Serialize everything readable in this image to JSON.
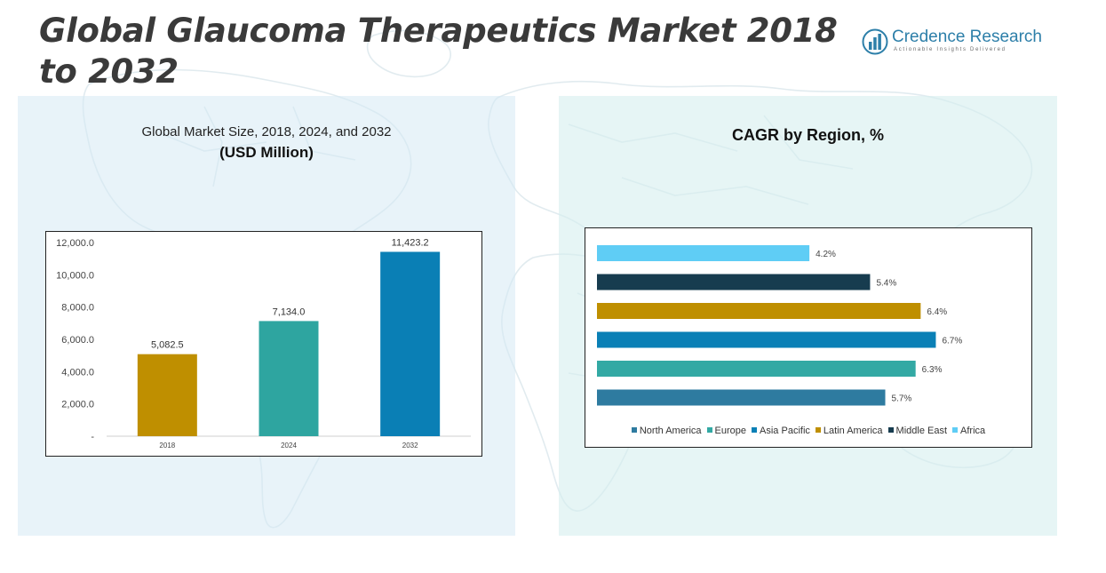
{
  "page": {
    "title": "Global Glaucoma Therapeutics Market 2018 to 2032",
    "logo": {
      "name": "Credence Research",
      "tagline": "Actionable Insights Delivered",
      "icon": "bar-chart-logo-icon"
    }
  },
  "colors": {
    "title_text": "#3a3a3a",
    "logo_blue": "#2d7fa9",
    "bar_2018": "#bf8f00",
    "bar_2024": "#2ea5a0",
    "bar_2032": "#0a7fb5",
    "north_america": "#2e7ba0",
    "europe": "#33a9a4",
    "asia_pacific": "#0a80b6",
    "latin_america": "#bf8f00",
    "middle_east": "#173c4f",
    "africa": "#5fcdf5"
  },
  "chart_data": [
    {
      "type": "bar",
      "title": "Global Market Size, 2018, 2024, and 2032",
      "subtitle": "(USD Million)",
      "categories": [
        "2018",
        "2024",
        "2032"
      ],
      "values": [
        5082.5,
        7134.0,
        11423.2
      ],
      "value_labels": [
        "5,082.5",
        "7,134.0",
        "11,423.2"
      ],
      "ylim": [
        0,
        12000
      ],
      "yticks": [
        0,
        2000,
        4000,
        6000,
        8000,
        10000,
        12000
      ],
      "ytick_labels": [
        "-",
        "2,000.0",
        "4,000.0",
        "6,000.0",
        "8,000.0",
        "10,000.0",
        "12,000.0"
      ],
      "bar_colors": [
        "#bf8f00",
        "#2ea5a0",
        "#0a7fb5"
      ],
      "grid": false
    },
    {
      "type": "bar",
      "orientation": "horizontal",
      "title": "CAGR by Region, %",
      "categories": [
        "North America",
        "Europe",
        "Asia Pacific",
        "Latin America",
        "Middle East",
        "Africa"
      ],
      "values": [
        5.7,
        6.3,
        6.7,
        6.4,
        5.4,
        4.2
      ],
      "value_labels": [
        "5.7%",
        "6.3%",
        "6.7%",
        "6.4%",
        "5.4%",
        "4.2%"
      ],
      "colors": [
        "#2e7ba0",
        "#33a9a4",
        "#0a80b6",
        "#bf8f00",
        "#173c4f",
        "#5fcdf5"
      ],
      "xlim": [
        0,
        7.5
      ],
      "legend": "bottom",
      "grid": false
    }
  ]
}
